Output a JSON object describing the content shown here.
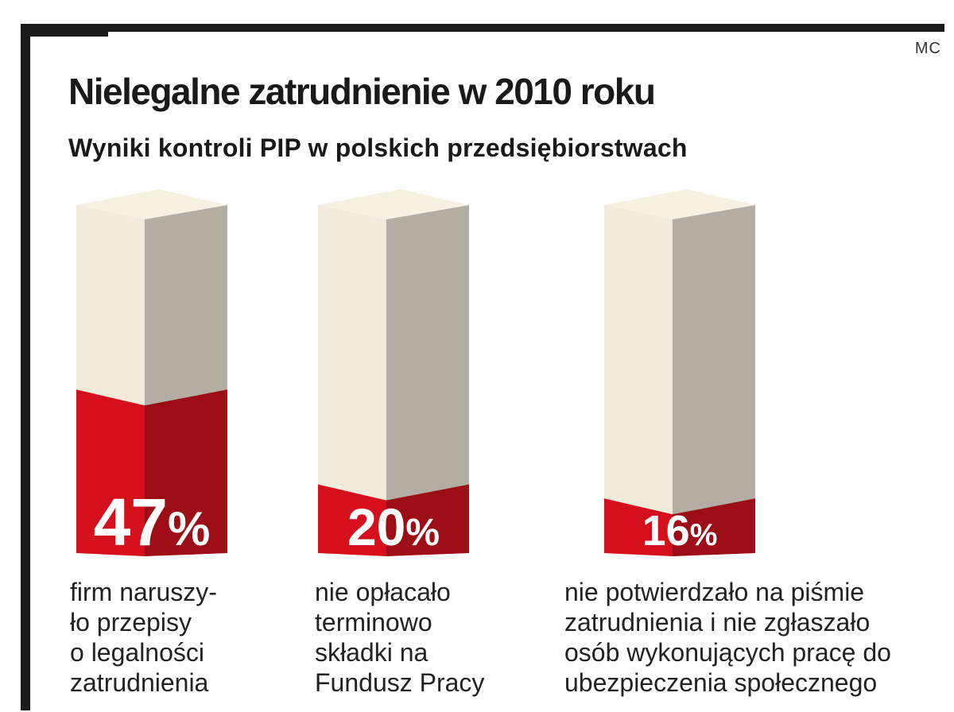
{
  "header": {
    "credit": "MC",
    "title": "Nielegalne zatrudnienie w 2010 roku",
    "subtitle": "Wyniki kontroli PIP w polskich przedsiębiorstwach"
  },
  "colors": {
    "frame": "#1a1a1a",
    "bar_front": "#f2ebdc",
    "bar_side": "#b3ada3",
    "bar_top": "#f7f1e2",
    "fill_front": "#d4101c",
    "fill_side": "#9c0d15",
    "label": "#ffffff"
  },
  "chart_data": {
    "type": "bar",
    "title": "Nielegalne zatrudnienie w 2010 roku",
    "subtitle": "Wyniki kontroli PIP w polskich przedsiębiorstwach",
    "unit": "%",
    "ylim": [
      0,
      100
    ],
    "values": [
      47,
      20,
      16
    ],
    "value_labels": [
      "47%",
      "20%",
      "16%"
    ],
    "categories": [
      "firm naruszyło przepisy o legalności zatrudnienia",
      "nie opłacało terminowo składki na Fundusz Pracy",
      "nie potwierdzało na piśmie zatrudnienia i nie zgłaszało osób wykonujących pracę do ubezpieczenia społecznego"
    ],
    "category_lines": [
      [
        "firm naruszy-",
        "ło przepisy",
        "o legalności",
        "zatrudnienia"
      ],
      [
        "nie opłacało",
        "terminowo",
        "składki na",
        "Fundusz Pracy"
      ],
      [
        "nie potwierdzało na piśmie",
        "zatrudnienia i nie zgłaszało",
        "osób wykonujących pracę do",
        "ubezpieczenia społecznego"
      ]
    ],
    "grid": false,
    "legend": "none"
  }
}
